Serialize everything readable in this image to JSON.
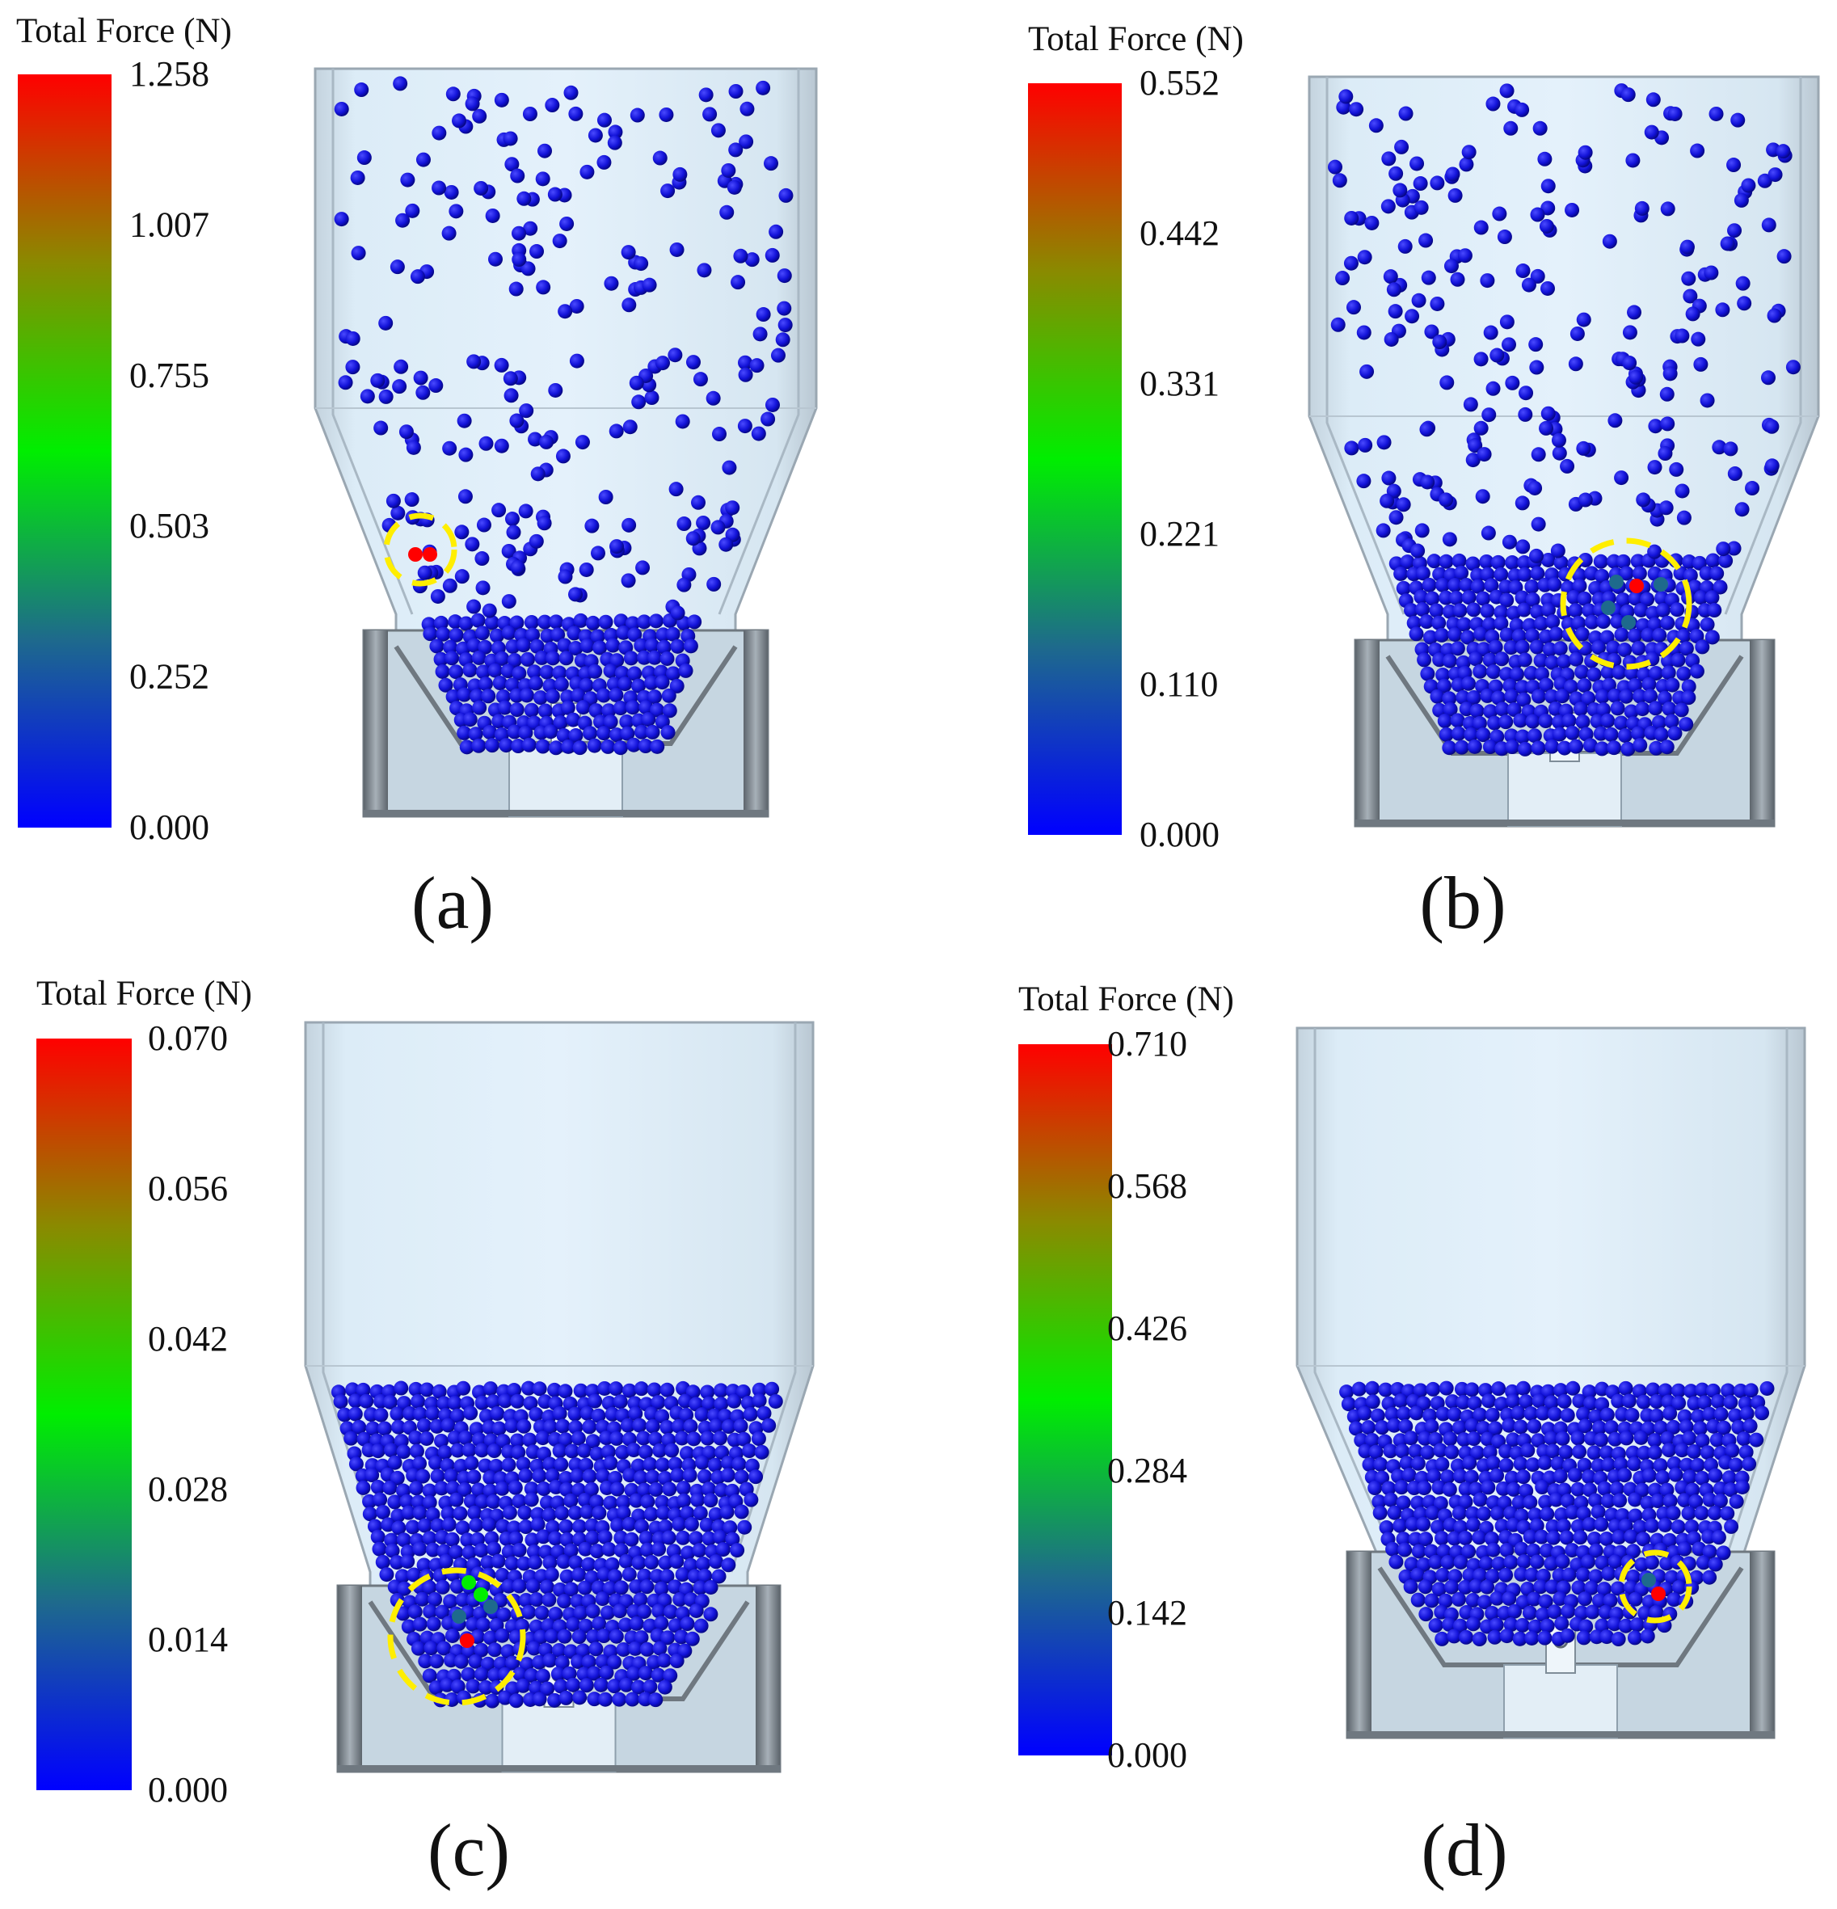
{
  "colors": {
    "low": "#0000ff",
    "mid_low": "#1e6a8c",
    "mid": "#00ee00",
    "mid_high": "#8a8a00",
    "high": "#ff0000",
    "particle": "#1010d8",
    "hopper_fill": "#d8ecf8",
    "hopper_edge": "#9aa7b2",
    "steel": "#6f7880",
    "highlight_circle": "#ffee00"
  },
  "panels": [
    {
      "id": "a",
      "caption": "(a)",
      "legend_title": "Total Force (N)",
      "ticks": [
        "1.258",
        "1.007",
        "0.755",
        "0.503",
        "0.252",
        "0.000"
      ]
    },
    {
      "id": "b",
      "caption": "(b)",
      "legend_title": "Total Force (N)",
      "ticks": [
        "0.552",
        "0.442",
        "0.331",
        "0.221",
        "0.110",
        "0.000"
      ]
    },
    {
      "id": "c",
      "caption": "(c)",
      "legend_title": "Total Force (N)",
      "ticks": [
        "0.070",
        "0.056",
        "0.042",
        "0.028",
        "0.014",
        "0.000"
      ]
    },
    {
      "id": "d",
      "caption": "(d)",
      "legend_title": "Total Force (N)",
      "ticks": [
        "0.710",
        "0.568",
        "0.426",
        "0.284",
        "0.142",
        "0.000"
      ]
    }
  ]
}
